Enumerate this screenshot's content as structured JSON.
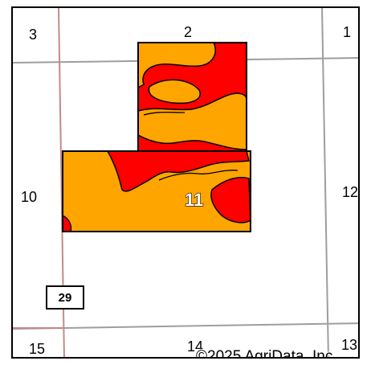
{
  "map": {
    "sections": {
      "nw": "3",
      "n": "2",
      "ne": "1",
      "w": "10",
      "e": "12",
      "sw": "15",
      "s": "14",
      "se": "13"
    },
    "field_number": "11",
    "route_number": "29",
    "copyright": "©2025 AgriData, Inc.",
    "colors": {
      "zone_high": "#ff0000",
      "zone_mid": "#ffa500",
      "section_line": "#9e9e9e",
      "road_line": "#c28a8a",
      "boundary": "#000000"
    }
  }
}
